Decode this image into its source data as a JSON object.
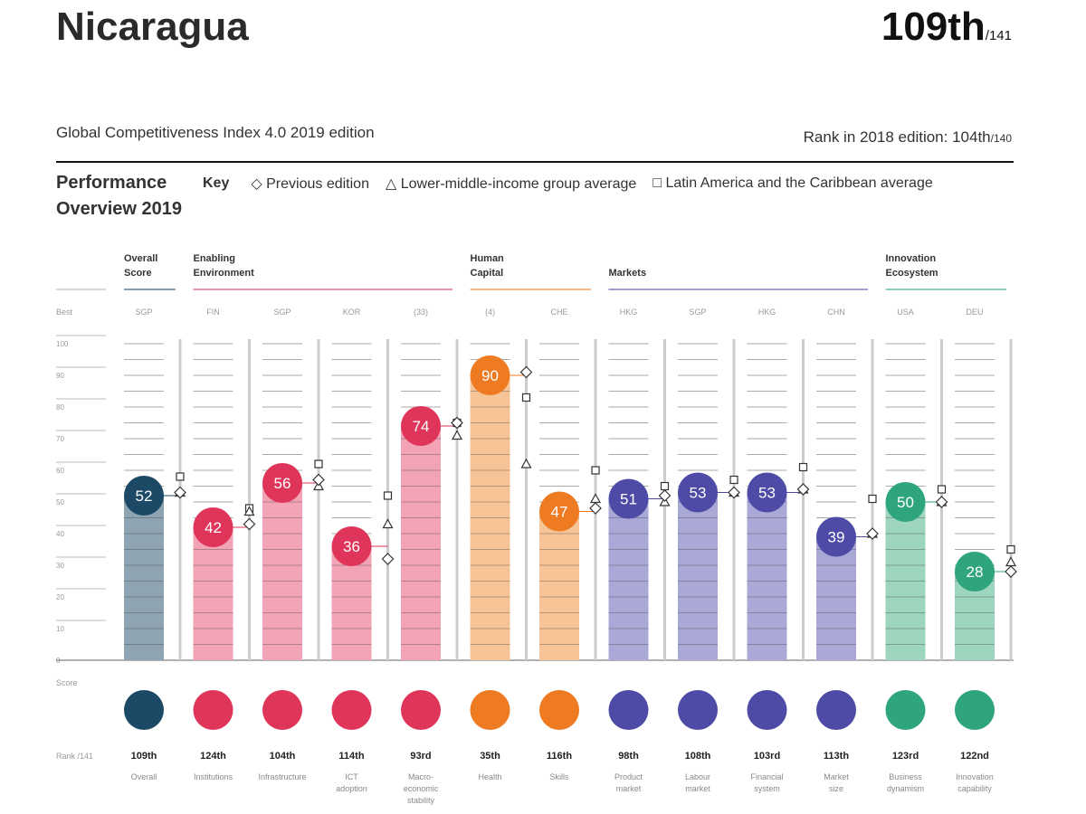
{
  "header": {
    "country": "Nicaragua",
    "rank": "109th",
    "rank_total": "/141",
    "index_title": "Global Competitiveness Index 4.0 2019 edition",
    "rank_2018_label": "Rank in 2018 edition: 104th",
    "rank_2018_total": "/140"
  },
  "performance": {
    "title_line1": "Performance",
    "title_line2": "Overview 2019",
    "key_label": "Key",
    "key_items": [
      "Previous edition",
      "Lower-middle-income group average",
      "Latin America and the Caribbean average"
    ]
  },
  "colors": {
    "overall": "#1c4966",
    "overall_bar": "#8ea4b3",
    "enabling": "#e0355a",
    "enabling_bar": "#f2a3b5",
    "human": "#ee7a22",
    "human_bar": "#f7c497",
    "markets": "#4d4ba6",
    "markets_bar": "#a9a8d6",
    "innovation": "#2fa57d",
    "innovation_bar": "#9dd5be"
  },
  "chart_data": {
    "type": "bar",
    "ylim": [
      0,
      100
    ],
    "yticks": [
      0,
      10,
      20,
      30,
      40,
      50,
      60,
      70,
      80,
      90,
      100
    ],
    "row_labels": {
      "best": "Best",
      "score": "Score",
      "rank": "Rank /141"
    },
    "groups": [
      {
        "name": "Overall Score",
        "line1": "Overall",
        "line2": "Score",
        "key": "overall",
        "pillars": [
          0
        ]
      },
      {
        "name": "Enabling Environment",
        "line1": "Enabling",
        "line2": "Environment",
        "key": "enabling",
        "pillars": [
          1,
          2,
          3,
          4
        ]
      },
      {
        "name": "Human Capital",
        "line1": "Human",
        "line2": "Capital",
        "key": "human",
        "pillars": [
          5,
          6
        ]
      },
      {
        "name": "Markets",
        "line1": "",
        "line2": "Markets",
        "key": "markets",
        "pillars": [
          7,
          8,
          9,
          10
        ]
      },
      {
        "name": "Innovation Ecosystem",
        "line1": "Innovation",
        "line2": "Ecosystem",
        "key": "innovation",
        "pillars": [
          11,
          12
        ]
      }
    ],
    "pillars": [
      {
        "label": [
          "Overall"
        ],
        "best": "SGP",
        "score": 52,
        "rank": "109th",
        "group": "overall",
        "previous": 53,
        "lmi_avg": 53,
        "lac_avg": 58
      },
      {
        "label": [
          "Institutions"
        ],
        "best": "FIN",
        "score": 42,
        "rank": "124th",
        "group": "enabling",
        "previous": 43,
        "lmi_avg": 47,
        "lac_avg": 48
      },
      {
        "label": [
          "Infrastructure"
        ],
        "best": "SGP",
        "score": 56,
        "rank": "104th",
        "group": "enabling",
        "previous": 57,
        "lmi_avg": 55,
        "lac_avg": 62
      },
      {
        "label": [
          "ICT",
          "adoption"
        ],
        "best": "KOR",
        "score": 36,
        "rank": "114th",
        "group": "enabling",
        "previous": 32,
        "lmi_avg": 43,
        "lac_avg": 52
      },
      {
        "label": [
          "Macro-",
          "economic",
          "stability"
        ],
        "best": "(33)",
        "score": 74,
        "rank": "93rd",
        "group": "enabling",
        "previous": 75,
        "lmi_avg": 71,
        "lac_avg": 75
      },
      {
        "label": [
          "Health"
        ],
        "best": "(4)",
        "score": 90,
        "rank": "35th",
        "group": "human",
        "previous": 91,
        "lmi_avg": 62,
        "lac_avg": 83
      },
      {
        "label": [
          "Skills"
        ],
        "best": "CHE",
        "score": 47,
        "rank": "116th",
        "group": "human",
        "previous": 48,
        "lmi_avg": 51,
        "lac_avg": 60
      },
      {
        "label": [
          "Product",
          "market"
        ],
        "best": "HKG",
        "score": 51,
        "rank": "98th",
        "group": "markets",
        "previous": 52,
        "lmi_avg": 50,
        "lac_avg": 55
      },
      {
        "label": [
          "Labour",
          "market"
        ],
        "best": "SGP",
        "score": 53,
        "rank": "108th",
        "group": "markets",
        "previous": 53,
        "lmi_avg": 53,
        "lac_avg": 57
      },
      {
        "label": [
          "Financial",
          "system"
        ],
        "best": "HKG",
        "score": 53,
        "rank": "103rd",
        "group": "markets",
        "previous": 54,
        "lmi_avg": 54,
        "lac_avg": 61
      },
      {
        "label": [
          "Market",
          "size"
        ],
        "best": "CHN",
        "score": 39,
        "rank": "113th",
        "group": "markets",
        "previous": 40,
        "lmi_avg": 40,
        "lac_avg": 51
      },
      {
        "label": [
          "Business",
          "dynamism"
        ],
        "best": "USA",
        "score": 50,
        "rank": "123rd",
        "group": "innovation",
        "previous": 50,
        "lmi_avg": 50,
        "lac_avg": 54
      },
      {
        "label": [
          "Innovation",
          "capability"
        ],
        "best": "DEU",
        "score": 28,
        "rank": "122nd",
        "group": "innovation",
        "previous": 28,
        "lmi_avg": 31,
        "lac_avg": 35
      }
    ]
  }
}
